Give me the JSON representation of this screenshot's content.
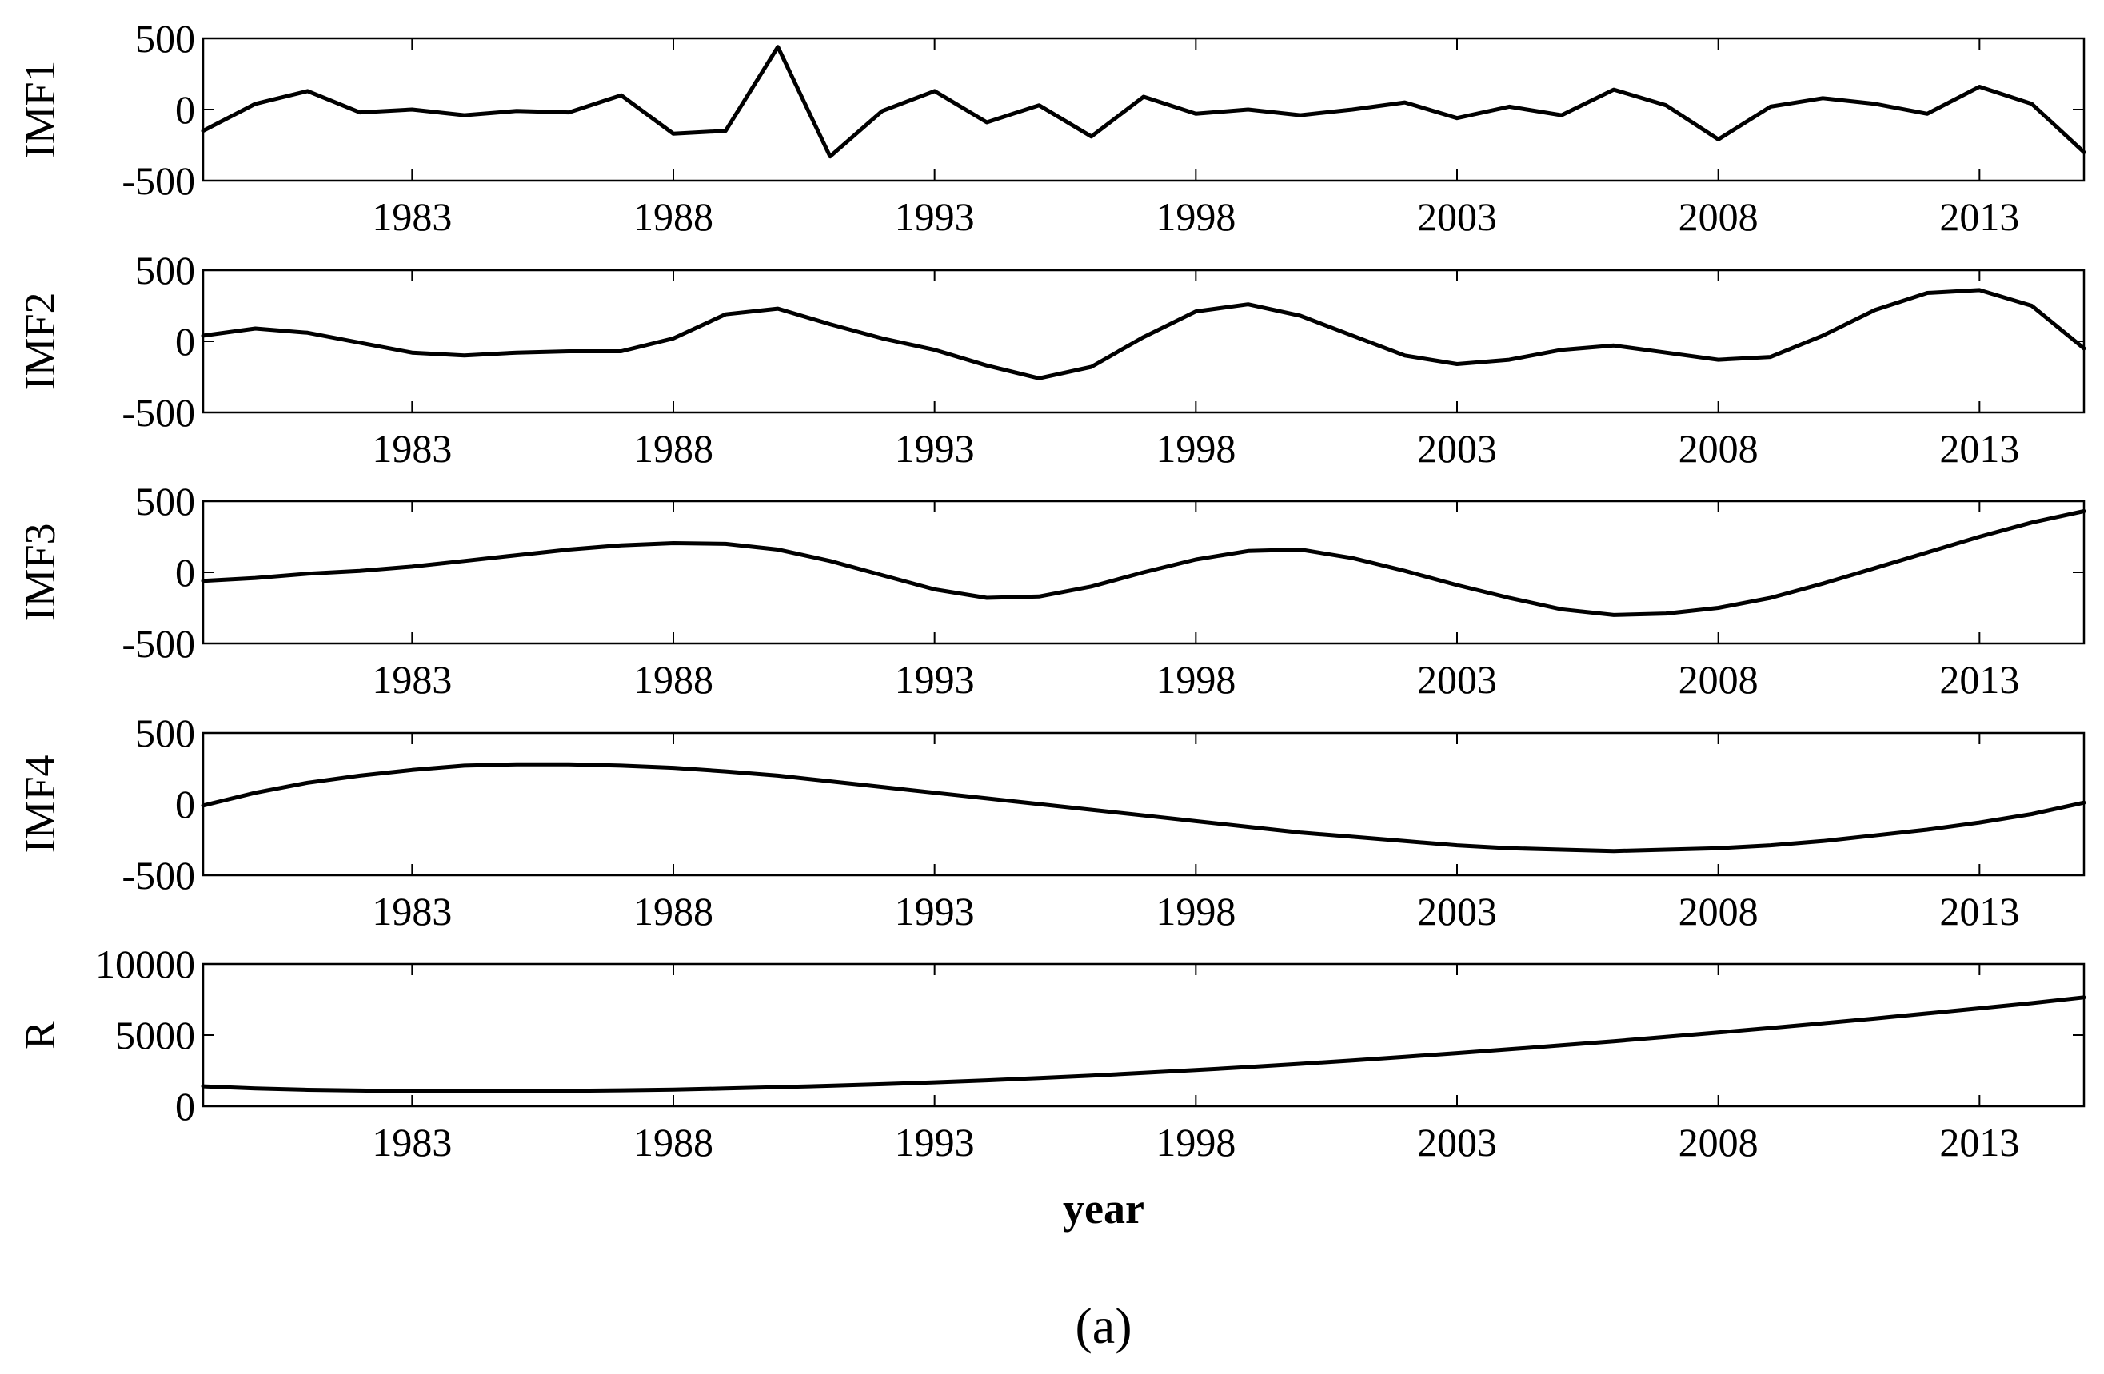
{
  "chart_data": [
    {
      "type": "line",
      "ylabel": "IMF1",
      "xlim": [
        1979,
        2015
      ],
      "ylim": [
        -500,
        500
      ],
      "yticks": [
        500,
        0,
        -500
      ],
      "xticks": [
        1983,
        1988,
        1993,
        1998,
        2003,
        2008,
        2013
      ],
      "series": [
        {
          "x": [
            1979,
            1980,
            1981,
            1982,
            1983,
            1984,
            1985,
            1986,
            1987,
            1988,
            1989,
            1990,
            1991,
            1992,
            1993,
            1994,
            1995,
            1996,
            1997,
            1998,
            1999,
            2000,
            2001,
            2002,
            2003,
            2004,
            2005,
            2006,
            2007,
            2008,
            2009,
            2010,
            2011,
            2012,
            2013,
            2014,
            2015
          ],
          "values": [
            -150,
            40,
            130,
            -20,
            0,
            -40,
            -10,
            -20,
            100,
            -170,
            -150,
            440,
            -330,
            -10,
            130,
            -90,
            30,
            -190,
            90,
            -30,
            0,
            -40,
            0,
            50,
            -60,
            20,
            -40,
            140,
            30,
            -210,
            20,
            80,
            40,
            -30,
            160,
            40,
            -300
          ]
        }
      ]
    },
    {
      "type": "line",
      "ylabel": "IMF2",
      "xlim": [
        1979,
        2015
      ],
      "ylim": [
        -500,
        500
      ],
      "yticks": [
        500,
        0,
        -500
      ],
      "xticks": [
        1983,
        1988,
        1993,
        1998,
        2003,
        2008,
        2013
      ],
      "series": [
        {
          "x": [
            1979,
            1980,
            1981,
            1982,
            1983,
            1984,
            1985,
            1986,
            1987,
            1988,
            1989,
            1990,
            1991,
            1992,
            1993,
            1994,
            1995,
            1996,
            1997,
            1998,
            1999,
            2000,
            2001,
            2002,
            2003,
            2004,
            2005,
            2006,
            2007,
            2008,
            2009,
            2010,
            2011,
            2012,
            2013,
            2014,
            2015
          ],
          "values": [
            40,
            90,
            60,
            -10,
            -80,
            -100,
            -80,
            -70,
            -70,
            20,
            190,
            230,
            120,
            20,
            -60,
            -170,
            -260,
            -180,
            30,
            210,
            260,
            180,
            40,
            -100,
            -160,
            -130,
            -60,
            -30,
            -80,
            -130,
            -110,
            40,
            220,
            340,
            360,
            250,
            -50
          ]
        }
      ]
    },
    {
      "type": "line",
      "ylabel": "IMF3",
      "xlim": [
        1979,
        2015
      ],
      "ylim": [
        -500,
        500
      ],
      "yticks": [
        500,
        0,
        -500
      ],
      "xticks": [
        1983,
        1988,
        1993,
        1998,
        2003,
        2008,
        2013
      ],
      "series": [
        {
          "x": [
            1979,
            1980,
            1981,
            1982,
            1983,
            1984,
            1985,
            1986,
            1987,
            1988,
            1989,
            1990,
            1991,
            1992,
            1993,
            1994,
            1995,
            1996,
            1997,
            1998,
            1999,
            2000,
            2001,
            2002,
            2003,
            2004,
            2005,
            2006,
            2007,
            2008,
            2009,
            2010,
            2011,
            2012,
            2013,
            2014,
            2015
          ],
          "values": [
            -60,
            -40,
            -10,
            10,
            40,
            80,
            120,
            160,
            190,
            205,
            200,
            160,
            80,
            -20,
            -120,
            -180,
            -170,
            -100,
            0,
            90,
            150,
            160,
            100,
            10,
            -90,
            -180,
            -260,
            -300,
            -290,
            -250,
            -180,
            -80,
            30,
            140,
            250,
            350,
            430
          ]
        }
      ]
    },
    {
      "type": "line",
      "ylabel": "IMF4",
      "xlim": [
        1979,
        2015
      ],
      "ylim": [
        -500,
        500
      ],
      "yticks": [
        500,
        0,
        -500
      ],
      "xticks": [
        1983,
        1988,
        1993,
        1998,
        2003,
        2008,
        2013
      ],
      "series": [
        {
          "x": [
            1979,
            1980,
            1981,
            1982,
            1983,
            1984,
            1985,
            1986,
            1987,
            1988,
            1989,
            1990,
            1991,
            1992,
            1993,
            1994,
            1995,
            1996,
            1997,
            1998,
            1999,
            2000,
            2001,
            2002,
            2003,
            2004,
            2005,
            2006,
            2007,
            2008,
            2009,
            2010,
            2011,
            2012,
            2013,
            2014,
            2015
          ],
          "values": [
            -10,
            80,
            150,
            200,
            240,
            270,
            280,
            280,
            270,
            255,
            230,
            200,
            160,
            120,
            80,
            40,
            0,
            -40,
            -80,
            -120,
            -160,
            -200,
            -230,
            -260,
            -290,
            -310,
            -320,
            -330,
            -320,
            -310,
            -290,
            -260,
            -220,
            -180,
            -130,
            -70,
            10
          ]
        }
      ]
    },
    {
      "type": "line",
      "ylabel": "R",
      "xlabel": "year",
      "xlim": [
        1979,
        2015
      ],
      "ylim": [
        0,
        10000
      ],
      "yticks": [
        10000,
        5000,
        0
      ],
      "xticks": [
        1983,
        1988,
        1993,
        1998,
        2003,
        2008,
        2013
      ],
      "series": [
        {
          "x": [
            1979,
            1980,
            1981,
            1982,
            1983,
            1984,
            1985,
            1986,
            1987,
            1988,
            1989,
            1990,
            1991,
            1992,
            1993,
            1994,
            1995,
            1996,
            1997,
            1998,
            1999,
            2000,
            2001,
            2002,
            2003,
            2004,
            2005,
            2006,
            2007,
            2008,
            2009,
            2010,
            2011,
            2012,
            2013,
            2014,
            2015
          ],
          "values": [
            1400,
            1250,
            1150,
            1100,
            1050,
            1050,
            1050,
            1080,
            1120,
            1170,
            1250,
            1340,
            1440,
            1550,
            1680,
            1820,
            1980,
            2150,
            2340,
            2540,
            2750,
            2980,
            3220,
            3470,
            3730,
            4000,
            4280,
            4570,
            4870,
            5180,
            5500,
            5830,
            6170,
            6520,
            6880,
            7250,
            7650
          ]
        }
      ]
    }
  ],
  "caption": "(a)"
}
